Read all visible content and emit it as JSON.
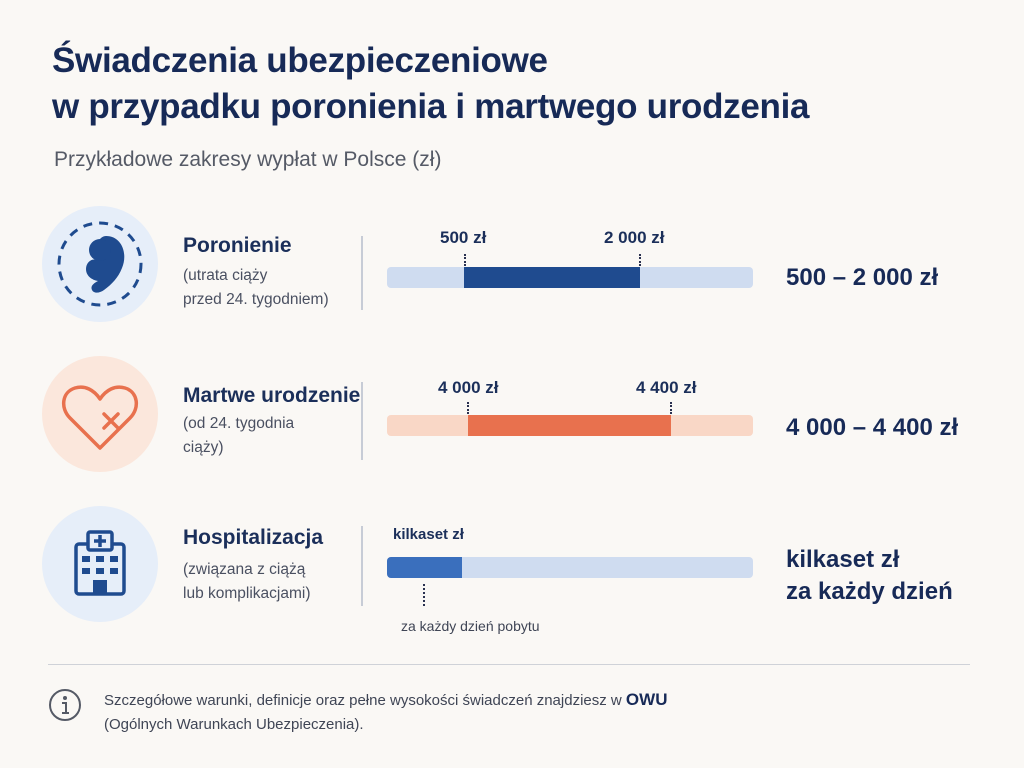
{
  "header": {
    "title_line1": "Świadczenia ubezpieczeniowe",
    "title_line2": "w przypadku poronienia i martwego urodzenia",
    "subtitle": "Przykładowe zakresy wypłat w Polsce (zł)"
  },
  "rows": [
    {
      "icon": "fetus-icon",
      "title": "Poronienie",
      "desc_line1": "(utrata ciąży",
      "desc_line2": "przed 24. tygodniem)",
      "tick_start": "500 zł",
      "tick_end": "2 000 zł",
      "range_text": "500 – 2 000 zł",
      "track_color": "#cfdcf0",
      "fill_color": "#1f4b8f"
    },
    {
      "icon": "broken-heart-icon",
      "title": "Martwe urodzenie",
      "desc_line1": "(od 24. tygodnia",
      "desc_line2": "ciąży)",
      "tick_start": "4 000 zł",
      "tick_end": "4 400 zł",
      "range_text": "4 000 – 4 400 zł",
      "track_color": "#f9d7c6",
      "fill_color": "#e8714e"
    },
    {
      "icon": "hospital-icon",
      "title": "Hospitalizacja",
      "desc_line1": "(związana z ciążą",
      "desc_line2": "lub komplikacjami)",
      "tick_start": "kilkaset zł",
      "tick_note": "za każdy dzień pobytu",
      "range_line1": "kilkaset zł",
      "range_line2": "za każdy dzień",
      "track_color": "#cfdcf0",
      "fill_color": "#3a6fbd"
    }
  ],
  "footer": {
    "note_prefix": "Szczegółowe warunki, definicje oraz pełne wysokości świadczeń znajdziesz w ",
    "note_bold": "OWU",
    "note_line2": "(Ogólnych Warunkach Ubezpieczenia)."
  }
}
